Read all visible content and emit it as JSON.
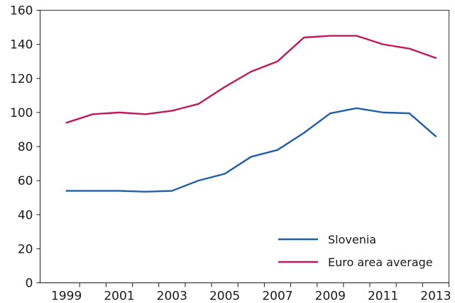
{
  "chart_data": {
    "type": "line",
    "title": "",
    "xlabel": "",
    "ylabel": "",
    "x": [
      1999,
      2000,
      2001,
      2002,
      2003,
      2004,
      2005,
      2006,
      2007,
      2008,
      2009,
      2010,
      2011,
      2012,
      2013
    ],
    "x_tick_labels": [
      "1999",
      "2001",
      "2003",
      "2005",
      "2007",
      "2009",
      "2011",
      "2013"
    ],
    "y_tick_labels": [
      "0",
      "20",
      "40",
      "60",
      "80",
      "100",
      "120",
      "140",
      "160"
    ],
    "ylim": [
      0,
      160
    ],
    "grid": false,
    "legend_position": "bottom-right",
    "series": [
      {
        "name": "Slovenia",
        "color": "#1f5ea8",
        "values": [
          54,
          54,
          54,
          53.5,
          54,
          60,
          64,
          74,
          78,
          88,
          99.5,
          102.5,
          100,
          99.5,
          86
        ]
      },
      {
        "name": "Euro area average",
        "color": "#c2185b",
        "values": [
          94,
          99,
          100,
          99,
          101,
          105,
          115,
          124,
          130,
          144,
          145,
          145,
          140,
          137.5,
          132
        ]
      }
    ]
  }
}
